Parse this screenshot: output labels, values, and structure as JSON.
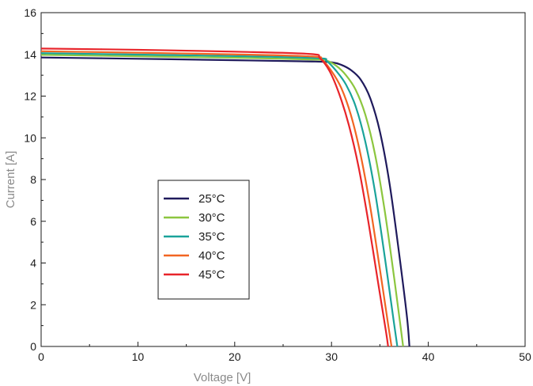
{
  "chart_data": {
    "type": "line",
    "title": "",
    "xlabel": "Voltage [V]",
    "ylabel": "Current [A]",
    "xlim": [
      0,
      50
    ],
    "ylim": [
      0,
      16
    ],
    "xticks": [
      0,
      10,
      20,
      30,
      40,
      50
    ],
    "yticks": [
      0,
      2,
      4,
      6,
      8,
      10,
      12,
      14,
      16
    ],
    "tick_labels_x": [
      "0",
      "10",
      "20",
      "30",
      "40",
      "50"
    ],
    "tick_labels_y": [
      "0",
      "2",
      "4",
      "6",
      "8",
      "10",
      "12",
      "14",
      "16"
    ],
    "grid": false,
    "legend_position": "lower-left",
    "series": [
      {
        "name": "25°C",
        "color": "#1f1a5c",
        "points": [
          [
            0,
            13.85
          ],
          [
            10,
            13.79
          ],
          [
            20,
            13.72
          ],
          [
            28,
            13.66
          ],
          [
            30,
            13.62
          ],
          [
            31,
            13.5
          ],
          [
            32,
            13.25
          ],
          [
            33,
            12.8
          ],
          [
            34,
            11.9
          ],
          [
            35,
            10.3
          ],
          [
            36,
            7.8
          ],
          [
            37,
            4.4
          ],
          [
            37.8,
            1.4
          ],
          [
            38.05,
            0
          ]
        ]
      },
      {
        "name": "30°C",
        "color": "#8cc63f",
        "points": [
          [
            0,
            13.98
          ],
          [
            10,
            13.91
          ],
          [
            20,
            13.84
          ],
          [
            28.5,
            13.75
          ],
          [
            29.5,
            13.7
          ],
          [
            30.5,
            13.45
          ],
          [
            31.5,
            13.0
          ],
          [
            32.5,
            12.3
          ],
          [
            33.5,
            11.1
          ],
          [
            34.5,
            9.2
          ],
          [
            35.5,
            6.5
          ],
          [
            36.5,
            3.2
          ],
          [
            37.15,
            0.9
          ],
          [
            37.4,
            0
          ]
        ]
      },
      {
        "name": "35°C",
        "color": "#1aa39a",
        "points": [
          [
            0,
            14.06
          ],
          [
            10,
            13.99
          ],
          [
            20,
            13.92
          ],
          [
            28.5,
            13.82
          ],
          [
            29.5,
            13.68
          ],
          [
            30.5,
            13.2
          ],
          [
            31.5,
            12.55
          ],
          [
            32.5,
            11.5
          ],
          [
            33.5,
            9.8
          ],
          [
            34.5,
            7.4
          ],
          [
            35.5,
            4.3
          ],
          [
            36.4,
            1.3
          ],
          [
            36.8,
            0
          ]
        ]
      },
      {
        "name": "40°C",
        "color": "#f26522",
        "points": [
          [
            0,
            14.15
          ],
          [
            10,
            14.08
          ],
          [
            20,
            14.0
          ],
          [
            28,
            13.9
          ],
          [
            29,
            13.75
          ],
          [
            30,
            13.2
          ],
          [
            31,
            12.4
          ],
          [
            32,
            11.1
          ],
          [
            33,
            9.2
          ],
          [
            34,
            6.7
          ],
          [
            35,
            3.7
          ],
          [
            35.9,
            0.9
          ],
          [
            36.2,
            0
          ]
        ]
      },
      {
        "name": "45°C",
        "color": "#e8242a",
        "points": [
          [
            0,
            14.28
          ],
          [
            10,
            14.22
          ],
          [
            20,
            14.13
          ],
          [
            27.8,
            14.02
          ],
          [
            28.8,
            13.82
          ],
          [
            29.8,
            13.2
          ],
          [
            30.8,
            12.1
          ],
          [
            31.8,
            10.6
          ],
          [
            32.8,
            8.6
          ],
          [
            33.8,
            6.0
          ],
          [
            34.8,
            3.1
          ],
          [
            35.6,
            0.8
          ],
          [
            35.85,
            0
          ]
        ]
      }
    ]
  }
}
